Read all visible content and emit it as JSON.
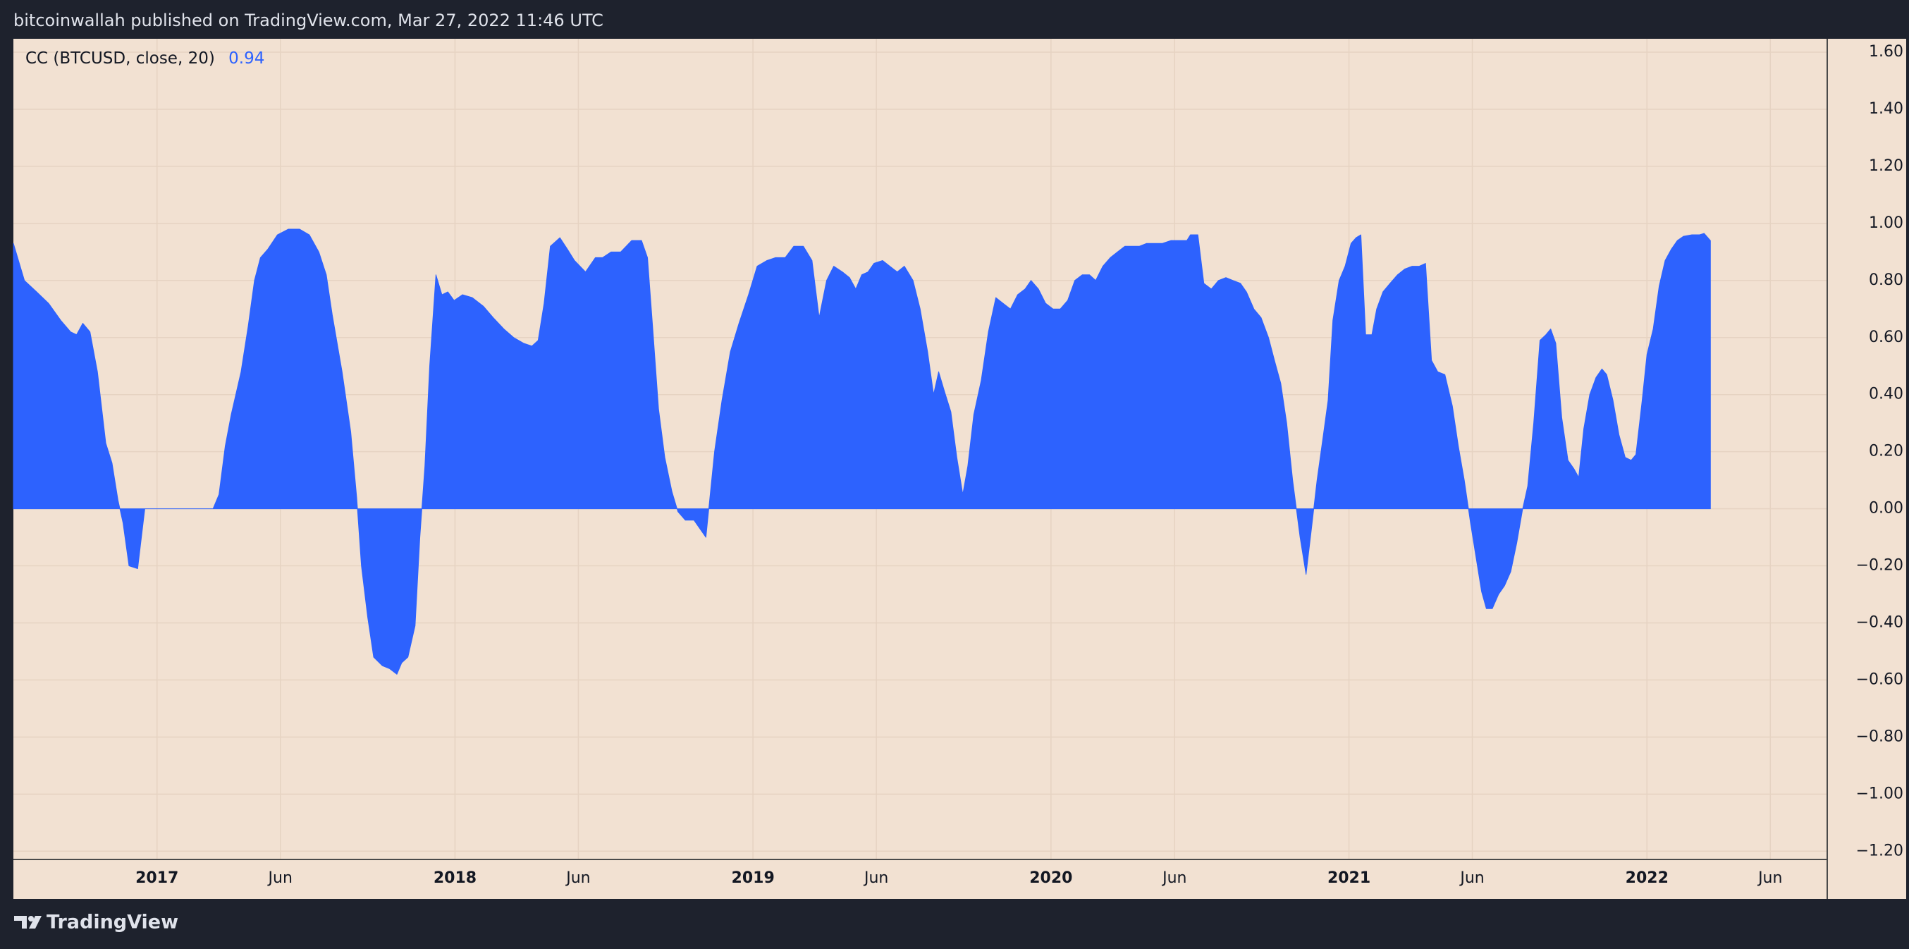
{
  "chart_data": {
    "type": "area",
    "caption": "bitcoinwallah published on TradingView.com, Mar 27, 2022 11:46 UTC",
    "brand": "TradingView",
    "series": [
      {
        "name": "CC (BTCUSD, close, 20)",
        "color": "#2d62fe",
        "values": [
          0.93,
          0.8,
          0.76,
          0.72,
          0.66,
          0.62,
          0.61,
          0.65,
          0.62,
          0.48,
          0.23,
          0.16,
          0.03,
          -0.05,
          -0.2,
          -0.21,
          0,
          0,
          0,
          0,
          0.05,
          0.22,
          0.33,
          0.48,
          0.64,
          0.8,
          0.88,
          0.91,
          0.96,
          0.98,
          0.98,
          0.96,
          0.9,
          0.82,
          0.68,
          0.48,
          0.27,
          0.04,
          -0.2,
          -0.38,
          -0.52,
          -0.55,
          -0.56,
          -0.58,
          -0.54,
          -0.52,
          -0.41,
          -0.1,
          0.15,
          0.5,
          0.82,
          0.75,
          0.76,
          0.73,
          0.75,
          0.74,
          0.71,
          0.67,
          0.63,
          0.6,
          0.58,
          0.57,
          0.59,
          0.72,
          0.92,
          0.95,
          0.91,
          0.87,
          0.83,
          0.88,
          0.88,
          0.9,
          0.9,
          0.94,
          0.94,
          0.88,
          0.64,
          0.35,
          0.18,
          0.06,
          -0.01,
          -0.04,
          -0.04,
          -0.07,
          -0.1,
          0.2,
          0.38,
          0.55,
          0.65,
          0.75,
          0.85,
          0.87,
          0.88,
          0.88,
          0.92,
          0.92,
          0.87,
          0.67,
          0.8,
          0.85,
          0.83,
          0.81,
          0.77,
          0.82,
          0.83,
          0.86,
          0.87,
          0.85,
          0.83,
          0.85,
          0.8,
          0.7,
          0.55,
          0.4,
          0.48,
          0.41,
          0.34,
          0.18,
          0.05,
          0.15,
          0.33,
          0.45,
          0.62,
          0.74,
          0.72,
          0.7,
          0.75,
          0.77,
          0.8,
          0.77,
          0.72,
          0.7,
          0.7,
          0.73,
          0.8,
          0.82,
          0.82,
          0.8,
          0.85,
          0.88,
          0.9,
          0.92,
          0.92,
          0.92,
          0.93,
          0.93,
          0.93,
          0.94,
          0.94,
          0.94,
          0.96,
          0.96,
          0.79,
          0.77,
          0.8,
          0.81,
          0.8,
          0.79,
          0.76,
          0.7,
          0.67,
          0.6,
          0.52,
          0.44,
          0.3,
          0.1,
          -0.1,
          -0.23,
          -0.08,
          0.1,
          0.25,
          0.38,
          0.66,
          0.8,
          0.85,
          0.93,
          0.95,
          0.96,
          0.61,
          0.61,
          0.7,
          0.76,
          0.79,
          0.82,
          0.84,
          0.85,
          0.85,
          0.86,
          0.52,
          0.48,
          0.47,
          0.36,
          0.22,
          0.1,
          -0.05,
          -0.18,
          -0.29,
          -0.35,
          -0.35,
          -0.3,
          -0.27,
          -0.22,
          -0.12,
          0,
          0.08,
          0.3,
          0.59,
          0.61,
          0.63,
          0.58,
          0.32,
          0.17,
          0.14,
          0.11,
          0.28,
          0.4,
          0.46,
          0.49,
          0.47,
          0.38,
          0.26,
          0.18,
          0.17,
          0.19,
          0.38,
          0.54,
          0.63,
          0.78,
          0.87,
          0.91,
          0.94,
          0.955,
          0.96,
          0.96,
          0.965,
          0.94
        ]
      }
    ],
    "x": [
      2016.518,
      2016.555,
      2016.596,
      2016.636,
      2016.677,
      2016.71,
      2016.73,
      2016.751,
      2016.775,
      2016.8,
      2016.828,
      2016.849,
      2016.869,
      2016.886,
      2016.906,
      2016.935,
      2016.959,
      2017.004,
      2017.086,
      2017.188,
      2017.208,
      2017.229,
      2017.249,
      2017.282,
      2017.306,
      2017.327,
      2017.347,
      2017.372,
      2017.404,
      2017.441,
      2017.478,
      2017.511,
      2017.543,
      2017.568,
      2017.588,
      2017.621,
      2017.65,
      2017.67,
      2017.686,
      2017.707,
      2017.727,
      2017.756,
      2017.78,
      2017.805,
      2017.821,
      2017.842,
      2017.866,
      2017.882,
      2017.899,
      2017.915,
      2017.936,
      2017.956,
      2017.976,
      2017.997,
      2018.025,
      2018.058,
      2018.095,
      2018.128,
      2018.164,
      2018.197,
      2018.23,
      2018.258,
      2018.279,
      2018.299,
      2018.32,
      2018.352,
      2018.377,
      2018.401,
      2018.438,
      2018.471,
      2018.495,
      2018.524,
      2018.556,
      2018.593,
      2018.626,
      2018.646,
      2018.663,
      2018.683,
      2018.704,
      2018.728,
      2018.748,
      2018.773,
      2018.802,
      2018.822,
      2018.842,
      2018.871,
      2018.896,
      2018.924,
      2018.953,
      2018.985,
      2019.014,
      2019.047,
      2019.075,
      2019.108,
      2019.137,
      2019.169,
      2019.198,
      2019.222,
      2019.247,
      2019.271,
      2019.3,
      2019.324,
      2019.345,
      2019.365,
      2019.386,
      2019.406,
      2019.435,
      2019.459,
      2019.484,
      2019.508,
      2019.537,
      2019.561,
      2019.586,
      2019.606,
      2019.623,
      2019.643,
      2019.664,
      2019.684,
      2019.704,
      2019.721,
      2019.741,
      2019.766,
      2019.79,
      2019.815,
      2019.839,
      2019.864,
      2019.888,
      2019.913,
      2019.933,
      2019.958,
      2019.982,
      2020.007,
      2020.031,
      2020.056,
      2020.08,
      2020.105,
      2020.129,
      2020.15,
      2020.174,
      2020.199,
      2020.223,
      2020.248,
      2020.272,
      2020.297,
      2020.321,
      2020.346,
      2020.374,
      2020.403,
      2020.431,
      2020.456,
      2020.468,
      2020.493,
      2020.513,
      2020.538,
      2020.562,
      2020.587,
      2020.611,
      2020.636,
      2020.656,
      2020.681,
      2020.705,
      2020.73,
      2020.75,
      2020.771,
      2020.791,
      2020.811,
      2020.836,
      2020.856,
      2020.873,
      2020.893,
      2020.913,
      2020.93,
      2020.946,
      2020.967,
      2020.987,
      2021.007,
      2021.024,
      2021.04,
      2021.056,
      2021.077,
      2021.093,
      2021.114,
      2021.138,
      2021.163,
      2021.187,
      2021.212,
      2021.236,
      2021.257,
      2021.277,
      2021.298,
      2021.322,
      2021.347,
      2021.367,
      2021.387,
      2021.408,
      2021.428,
      2021.445,
      2021.461,
      2021.481,
      2021.502,
      2021.522,
      2021.543,
      2021.563,
      2021.583,
      2021.6,
      2021.62,
      2021.641,
      2021.661,
      2021.677,
      2021.694,
      2021.714,
      2021.735,
      2021.755,
      2021.771,
      2021.788,
      2021.808,
      2021.829,
      2021.849,
      2021.865,
      2021.886,
      2021.906,
      2021.927,
      2021.947,
      2021.963,
      2021.984,
      2022.0,
      2022.021,
      2022.041,
      2022.061,
      2022.082,
      2022.102,
      2022.123,
      2022.151,
      2022.176,
      2022.192,
      2022.213
    ],
    "xlim": [
      2016.518,
      2022.605
    ],
    "xticks": [
      2017,
      {
        "value": 2017.414,
        "label": "Jun"
      },
      2018,
      {
        "value": 2018.414,
        "label": "Jun"
      },
      2019,
      {
        "value": 2019.414,
        "label": "Jun"
      },
      2020,
      {
        "value": 2020.415,
        "label": "Jun"
      },
      2021,
      {
        "value": 2021.414,
        "label": "Jun"
      },
      2022,
      {
        "value": 2022.414,
        "label": "Jun"
      }
    ],
    "ylim": [
      -1.229,
      1.647
    ],
    "yticks": [
      {
        "value": 1.6,
        "label": "1.60"
      },
      {
        "value": 1.4,
        "label": "1.40"
      },
      {
        "value": 1.2,
        "label": "1.20"
      },
      {
        "value": 1.0,
        "label": "1.00"
      },
      {
        "value": 0.8,
        "label": "0.80"
      },
      {
        "value": 0.6,
        "label": "0.60"
      },
      {
        "value": 0.4,
        "label": "0.40"
      },
      {
        "value": 0.2,
        "label": "0.20"
      },
      {
        "value": 0,
        "label": "0.00"
      },
      {
        "value": -0.2,
        "label": "−0.20"
      },
      {
        "value": -0.4,
        "label": "−0.40"
      },
      {
        "value": -0.6,
        "label": "−0.60"
      },
      {
        "value": -0.8,
        "label": "−0.80"
      },
      {
        "value": -1.0,
        "label": "−1.00"
      },
      {
        "value": -1.2,
        "label": "−1.20"
      }
    ],
    "grid": true
  }
}
